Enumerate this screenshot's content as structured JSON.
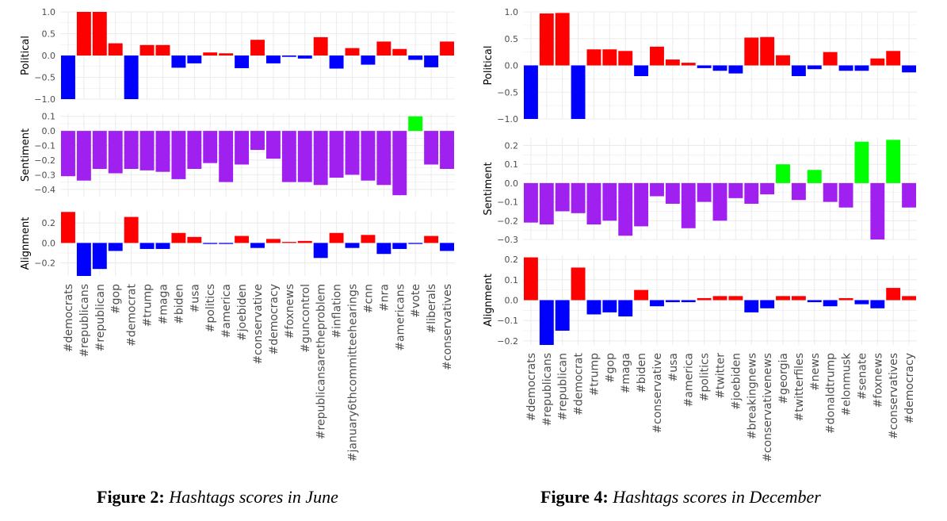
{
  "figures": [
    {
      "caption_label": "Figure 2:",
      "caption_text": "Hashtags scores in June",
      "chart_data": [
        {
          "type": "bar",
          "ylabel": "Political",
          "ylim": [
            -1.0,
            1.0
          ],
          "yticks": [
            1.0,
            0.5,
            0.0,
            -0.5,
            -1.0
          ],
          "tick_labels": [
            "1.0",
            "0.5",
            "0.0",
            "−0.5",
            "−1.0"
          ],
          "categories": [
            "#democrats",
            "#republicans",
            "#republican",
            "#gop",
            "#democrat",
            "#trump",
            "#maga",
            "#biden",
            "#usa",
            "#politics",
            "#america",
            "#joebiden",
            "#conservative",
            "#democracy",
            "#foxnews",
            "#guncontrol",
            "#republicansaretheproblem",
            "#inflation",
            "#january6thcommitteehearings",
            "#cnn",
            "#nra",
            "#americans",
            "#vote",
            "#liberals",
            "#conservatives"
          ],
          "values": [
            -1.0,
            1.0,
            1.0,
            0.28,
            -1.0,
            0.24,
            0.24,
            -0.28,
            -0.18,
            0.07,
            0.05,
            -0.29,
            0.36,
            -0.18,
            -0.03,
            -0.07,
            0.42,
            -0.3,
            0.17,
            -0.21,
            0.32,
            0.15,
            -0.1,
            -0.27,
            0.32
          ]
        },
        {
          "type": "bar",
          "ylabel": "Sentiment",
          "ylim": [
            -0.45,
            0.12
          ],
          "yticks": [
            0.1,
            0.0,
            -0.1,
            -0.2,
            -0.3,
            -0.4
          ],
          "tick_labels": [
            "0.1",
            "0.0",
            "−0.1",
            "−0.2",
            "−0.3",
            "−0.4"
          ],
          "categories": [
            "#democrats",
            "#republicans",
            "#republican",
            "#gop",
            "#democrat",
            "#trump",
            "#maga",
            "#biden",
            "#usa",
            "#politics",
            "#america",
            "#joebiden",
            "#conservative",
            "#democracy",
            "#foxnews",
            "#guncontrol",
            "#republicansaretheproblem",
            "#inflation",
            "#january6thcommitteehearings",
            "#cnn",
            "#nra",
            "#americans",
            "#vote",
            "#liberals",
            "#conservatives"
          ],
          "values": [
            -0.31,
            -0.34,
            -0.26,
            -0.29,
            -0.26,
            -0.27,
            -0.28,
            -0.33,
            -0.26,
            -0.22,
            -0.35,
            -0.23,
            -0.13,
            -0.19,
            -0.35,
            -0.35,
            -0.37,
            -0.32,
            -0.3,
            -0.34,
            -0.37,
            -0.44,
            0.1,
            -0.23,
            -0.26
          ]
        },
        {
          "type": "bar",
          "ylabel": "Alignment",
          "ylim": [
            -0.33,
            0.32
          ],
          "yticks": [
            0.2,
            0.0,
            -0.2
          ],
          "tick_labels": [
            "0.2",
            "0.0",
            "−0.2"
          ],
          "categories": [
            "#democrats",
            "#republicans",
            "#republican",
            "#gop",
            "#democrat",
            "#trump",
            "#maga",
            "#biden",
            "#usa",
            "#politics",
            "#america",
            "#joebiden",
            "#conservative",
            "#democracy",
            "#foxnews",
            "#guncontrol",
            "#republicansaretheproblem",
            "#inflation",
            "#january6thcommitteehearings",
            "#cnn",
            "#nra",
            "#americans",
            "#vote",
            "#liberals",
            "#conservatives"
          ],
          "values": [
            0.31,
            -0.33,
            -0.26,
            -0.08,
            0.26,
            -0.06,
            -0.06,
            0.1,
            0.06,
            -0.01,
            -0.01,
            0.07,
            -0.05,
            0.04,
            0.01,
            0.02,
            -0.15,
            0.1,
            -0.05,
            0.08,
            -0.11,
            -0.06,
            -0.01,
            0.07,
            -0.08
          ]
        }
      ]
    },
    {
      "caption_label": "Figure 4:",
      "caption_text": "Hashtags scores in December",
      "chart_data": [
        {
          "type": "bar",
          "ylabel": "Political",
          "ylim": [
            -1.0,
            1.0
          ],
          "yticks": [
            1.0,
            0.5,
            0.0,
            -0.5,
            -1.0
          ],
          "tick_labels": [
            "1.0",
            "0.5",
            "0.0",
            "−0.5",
            "−1.0"
          ],
          "categories": [
            "#democrats",
            "#republicans",
            "#republican",
            "#democrat",
            "#trump",
            "#gop",
            "#maga",
            "#biden",
            "#conservative",
            "#usa",
            "#america",
            "#politics",
            "#twitter",
            "#joebiden",
            "#breakingnews",
            "#conservativenews",
            "#georgia",
            "#twitterfiles",
            "#news",
            "#donaldtrump",
            "#elonmusk",
            "#senate",
            "#foxnews",
            "#conservatives",
            "#democracy"
          ],
          "values": [
            -1.0,
            0.97,
            0.98,
            -1.0,
            0.3,
            0.3,
            0.27,
            -0.2,
            0.35,
            0.11,
            0.05,
            -0.05,
            -0.1,
            -0.15,
            0.52,
            0.53,
            0.19,
            -0.2,
            -0.07,
            0.25,
            -0.1,
            -0.1,
            0.13,
            0.27,
            -0.13
          ]
        },
        {
          "type": "bar",
          "ylabel": "Sentiment",
          "ylim": [
            -0.3,
            0.24
          ],
          "yticks": [
            0.2,
            0.1,
            0.0,
            -0.1,
            -0.2,
            -0.3
          ],
          "tick_labels": [
            "0.2",
            "0.1",
            "0.0",
            "−0.1",
            "−0.2",
            "−0.3"
          ],
          "categories": [
            "#democrats",
            "#republicans",
            "#republican",
            "#democrat",
            "#trump",
            "#gop",
            "#maga",
            "#biden",
            "#conservative",
            "#usa",
            "#america",
            "#politics",
            "#twitter",
            "#joebiden",
            "#breakingnews",
            "#conservativenews",
            "#georgia",
            "#twitterfiles",
            "#news",
            "#donaldtrump",
            "#elonmusk",
            "#senate",
            "#foxnews",
            "#conservatives",
            "#democracy"
          ],
          "values": [
            -0.21,
            -0.22,
            -0.15,
            -0.16,
            -0.22,
            -0.2,
            -0.28,
            -0.23,
            -0.07,
            -0.11,
            -0.24,
            -0.1,
            -0.2,
            -0.08,
            -0.11,
            -0.06,
            0.1,
            -0.09,
            0.07,
            -0.1,
            -0.13,
            0.22,
            -0.3,
            0.23,
            -0.13
          ]
        },
        {
          "type": "bar",
          "ylabel": "Alignment",
          "ylim": [
            -0.22,
            0.22
          ],
          "yticks": [
            0.2,
            0.1,
            0.0,
            -0.1,
            -0.2
          ],
          "tick_labels": [
            "0.2",
            "0.1",
            "0.0",
            "−0.1",
            "−0.2"
          ],
          "categories": [
            "#democrats",
            "#republicans",
            "#republican",
            "#democrat",
            "#trump",
            "#gop",
            "#maga",
            "#biden",
            "#conservative",
            "#usa",
            "#america",
            "#politics",
            "#twitter",
            "#joebiden",
            "#breakingnews",
            "#conservativenews",
            "#georgia",
            "#twitterfiles",
            "#news",
            "#donaldtrump",
            "#elonmusk",
            "#senate",
            "#foxnews",
            "#conservatives",
            "#democracy"
          ],
          "values": [
            0.21,
            -0.22,
            -0.15,
            0.16,
            -0.07,
            -0.06,
            -0.08,
            0.05,
            -0.03,
            -0.01,
            -0.01,
            0.01,
            0.02,
            0.02,
            -0.06,
            -0.04,
            0.02,
            0.02,
            -0.01,
            -0.03,
            0.01,
            -0.02,
            -0.04,
            0.06,
            0.02
          ]
        }
      ]
    }
  ],
  "colors": {
    "positive": "#ff0000",
    "negative": "#0000ff",
    "sentiment_negative": "#a020f0",
    "sentiment_positive": "#00ff00",
    "grid": "#ebebeb",
    "text": "#4d4d4d"
  }
}
